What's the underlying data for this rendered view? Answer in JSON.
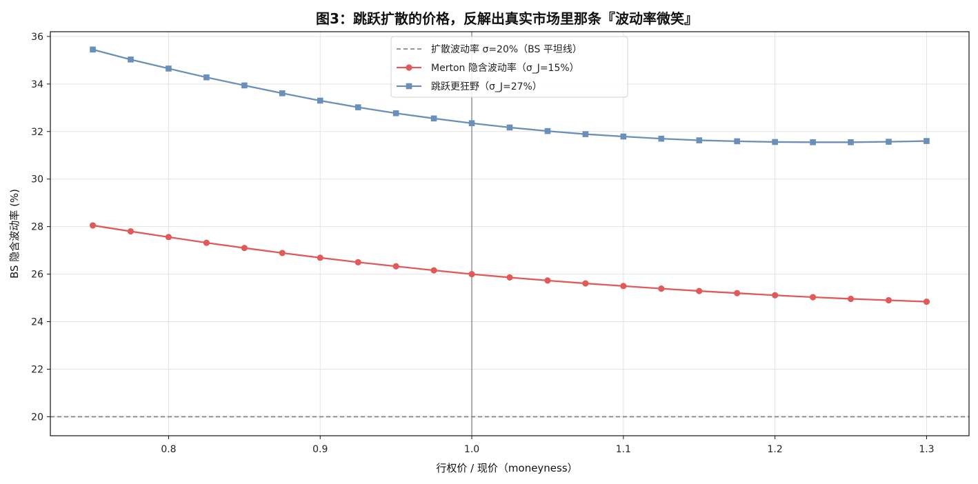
{
  "chart_data": {
    "type": "line",
    "title": "图3：跳跃扩散的价格，反解出真实市场里那条『波动率微笑』",
    "xlabel": "行权价 / 现价（moneyness）",
    "ylabel": "BS 隐含波动率 (%)",
    "xlim": [
      0.722,
      1.328
    ],
    "ylim": [
      19.2,
      36.2
    ],
    "xticks": [
      0.8,
      0.9,
      1.0,
      1.1,
      1.2,
      1.3
    ],
    "xtick_labels": [
      "0.8",
      "0.9",
      "1.0",
      "1.1",
      "1.2",
      "1.3"
    ],
    "yticks": [
      20,
      22,
      24,
      26,
      28,
      30,
      32,
      34,
      36
    ],
    "ytick_labels": [
      "20",
      "22",
      "24",
      "26",
      "28",
      "30",
      "32",
      "34",
      "36"
    ],
    "grid": true,
    "legend_position": "top-center",
    "vline_x": 1.0,
    "hline": {
      "name": "扩散波动率 σ=20%（BS 平坦线）",
      "y": 20,
      "color": "#888888",
      "style": "dashed"
    },
    "x": [
      0.75,
      0.775,
      0.8,
      0.825,
      0.85,
      0.875,
      0.9,
      0.925,
      0.95,
      0.975,
      1.0,
      1.025,
      1.05,
      1.075,
      1.1,
      1.125,
      1.15,
      1.175,
      1.2,
      1.225,
      1.25,
      1.275,
      1.3
    ],
    "series": [
      {
        "name": "Merton 隐含波动率（σ_J=15%）",
        "color": "#e05a5a",
        "marker": "circle",
        "values": [
          28.05,
          27.8,
          27.56,
          27.32,
          27.1,
          26.89,
          26.69,
          26.5,
          26.33,
          26.16,
          26.0,
          25.86,
          25.73,
          25.61,
          25.5,
          25.39,
          25.29,
          25.2,
          25.11,
          25.03,
          24.96,
          24.9,
          24.84
        ]
      },
      {
        "name": "跳跃更狂野（σ_J=27%）",
        "color": "#6a8fb9",
        "marker": "square",
        "values": [
          35.45,
          35.03,
          34.65,
          34.28,
          33.94,
          33.61,
          33.3,
          33.02,
          32.77,
          32.55,
          32.35,
          32.17,
          32.02,
          31.89,
          31.79,
          31.7,
          31.63,
          31.59,
          31.56,
          31.55,
          31.55,
          31.57,
          31.6
        ]
      }
    ]
  }
}
